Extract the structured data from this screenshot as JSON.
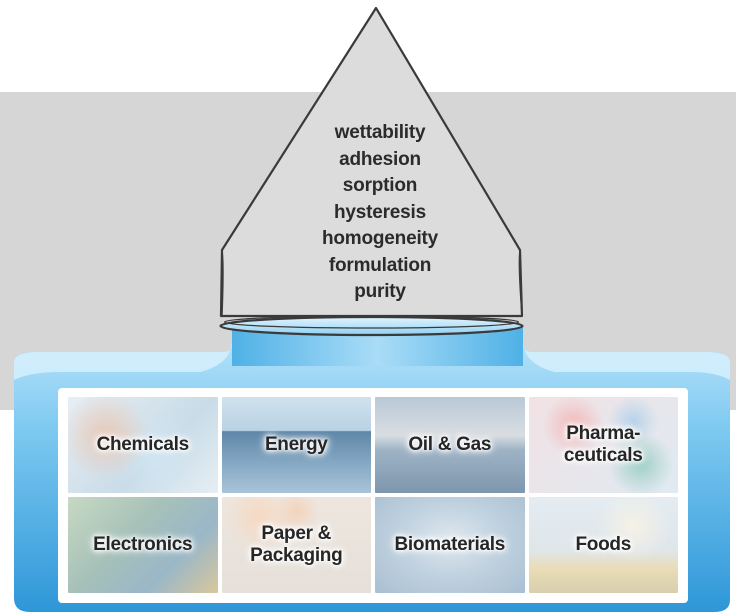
{
  "properties": [
    "wettability",
    "adhesion",
    "sorption",
    "hysteresis",
    "homogeneity",
    "formulation",
    "purity"
  ],
  "industries": [
    {
      "label": "Chemicals"
    },
    {
      "label": "Energy"
    },
    {
      "label": "Oil & Gas"
    },
    {
      "label": "Pharma-\nceuticals"
    },
    {
      "label": "Electronics"
    },
    {
      "label": "Paper &\nPackaging"
    },
    {
      "label": "Biomaterials"
    },
    {
      "label": "Foods"
    }
  ],
  "colors": {
    "band": "#d6d6d6",
    "vessel_light": "#cfeafa",
    "vessel_mid": "#6cc3ef",
    "vessel_dark": "#2f9bdc",
    "text": "#2b2b2b"
  }
}
